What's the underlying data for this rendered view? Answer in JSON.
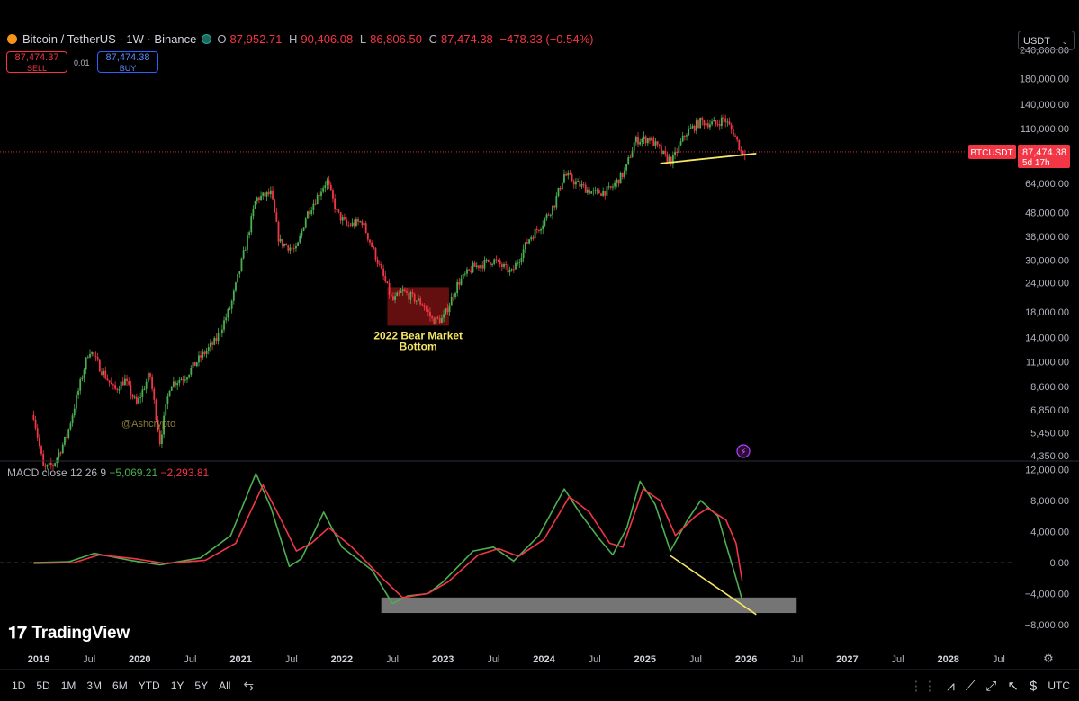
{
  "header": {
    "symbol": "Bitcoin / TetherUS · 1W · Binance",
    "o_label": "O",
    "o_value": "87,952.71",
    "h_label": "H",
    "h_value": "90,406.08",
    "l_label": "L",
    "l_value": "86,806.50",
    "c_label": "C",
    "c_value": "87,474.38",
    "change": "−478.33 (−0.54%)"
  },
  "trade": {
    "sell_price": "87,474.37",
    "sell_label": "SELL",
    "spread": "0.01",
    "buy_price": "87,474.38",
    "buy_label": "BUY"
  },
  "currency_select": "USDT",
  "price_tag": {
    "symbol": "BTCUSDT",
    "price": "87,474.38",
    "countdown": "5d 17h"
  },
  "macd": {
    "label": "MACD close 12 26 9",
    "macd_value": "−5,069.21",
    "signal_value": "−2,293.81"
  },
  "logo_text": "TradingView",
  "watermark": "@Ashcrypto",
  "annotation": {
    "line1": "2022 Bear Market",
    "line2": "Bottom"
  },
  "bottom_bar": {
    "timeframes": [
      "1D",
      "5D",
      "1M",
      "3M",
      "6M",
      "YTD",
      "1Y",
      "5Y",
      "All"
    ],
    "timezone": "UTC"
  },
  "colors": {
    "up": "#4caf50",
    "down": "#f23645",
    "macd_line": "#4caf50",
    "signal_line": "#f23645",
    "trendline": "#f5e663",
    "background": "#000000"
  },
  "chart_data": [
    {
      "type": "candlestick",
      "title": "Bitcoin / TetherUS · 1W · Binance",
      "log_scale": true,
      "y_ticks": [
        4350,
        5450,
        6850,
        8600,
        11000,
        14000,
        18000,
        24000,
        30000,
        38000,
        48000,
        64000,
        110000,
        140000,
        180000,
        240000
      ],
      "y_tick_labels": [
        "4,350.00",
        "5,450.00",
        "6,850.00",
        "8,600.00",
        "11,000.00",
        "14,000.00",
        "18,000.00",
        "24,000.00",
        "30,000.00",
        "38,000.00",
        "48,000.00",
        "64,000.00",
        "110,000.00",
        "140,000.00",
        "180,000.00",
        "240,000.00"
      ],
      "x_tick_labels": [
        "2019",
        "Jul",
        "2020",
        "Jul",
        "2021",
        "Jul",
        "2022",
        "Jul",
        "2023",
        "Jul",
        "2024",
        "Jul",
        "2025",
        "Jul",
        "2026",
        "Jul",
        "2027",
        "Jul",
        "2028",
        "Jul"
      ],
      "x_tick_dates": [
        2019.0,
        2019.5,
        2020.0,
        2020.5,
        2021.0,
        2021.5,
        2022.0,
        2022.5,
        2023.0,
        2023.5,
        2024.0,
        2024.5,
        2025.0,
        2025.5,
        2026.0,
        2026.5,
        2027.0,
        2027.5,
        2028.0,
        2028.5
      ],
      "price_path": [
        {
          "date": 2018.95,
          "price": 6500
        },
        {
          "date": 2019.05,
          "price": 3800
        },
        {
          "date": 2019.15,
          "price": 4000
        },
        {
          "date": 2019.28,
          "price": 5300
        },
        {
          "date": 2019.4,
          "price": 8500
        },
        {
          "date": 2019.5,
          "price": 12500
        },
        {
          "date": 2019.6,
          "price": 10500
        },
        {
          "date": 2019.75,
          "price": 8300
        },
        {
          "date": 2019.85,
          "price": 9200
        },
        {
          "date": 2019.97,
          "price": 7200
        },
        {
          "date": 2020.1,
          "price": 9800
        },
        {
          "date": 2020.2,
          "price": 5000
        },
        {
          "date": 2020.3,
          "price": 8800
        },
        {
          "date": 2020.45,
          "price": 9500
        },
        {
          "date": 2020.6,
          "price": 11500
        },
        {
          "date": 2020.75,
          "price": 13500
        },
        {
          "date": 2020.9,
          "price": 19000
        },
        {
          "date": 2021.05,
          "price": 35000
        },
        {
          "date": 2021.15,
          "price": 55000
        },
        {
          "date": 2021.3,
          "price": 58000
        },
        {
          "date": 2021.38,
          "price": 36000
        },
        {
          "date": 2021.55,
          "price": 33000
        },
        {
          "date": 2021.65,
          "price": 47000
        },
        {
          "date": 2021.85,
          "price": 66000
        },
        {
          "date": 2021.95,
          "price": 48000
        },
        {
          "date": 2022.05,
          "price": 42000
        },
        {
          "date": 2022.2,
          "price": 44000
        },
        {
          "date": 2022.35,
          "price": 30000
        },
        {
          "date": 2022.5,
          "price": 20000
        },
        {
          "date": 2022.6,
          "price": 22000
        },
        {
          "date": 2022.8,
          "price": 19500
        },
        {
          "date": 2022.9,
          "price": 16500
        },
        {
          "date": 2023.0,
          "price": 16800
        },
        {
          "date": 2023.15,
          "price": 24000
        },
        {
          "date": 2023.3,
          "price": 28000
        },
        {
          "date": 2023.5,
          "price": 30000
        },
        {
          "date": 2023.68,
          "price": 26500
        },
        {
          "date": 2023.85,
          "price": 37000
        },
        {
          "date": 2023.98,
          "price": 43000
        },
        {
          "date": 2024.1,
          "price": 52000
        },
        {
          "date": 2024.2,
          "price": 70000
        },
        {
          "date": 2024.35,
          "price": 63000
        },
        {
          "date": 2024.5,
          "price": 58000
        },
        {
          "date": 2024.65,
          "price": 60000
        },
        {
          "date": 2024.8,
          "price": 72000
        },
        {
          "date": 2024.9,
          "price": 98000
        },
        {
          "date": 2025.05,
          "price": 100000
        },
        {
          "date": 2025.2,
          "price": 83000
        },
        {
          "date": 2025.27,
          "price": 80000
        },
        {
          "date": 2025.4,
          "price": 105000
        },
        {
          "date": 2025.55,
          "price": 118000
        },
        {
          "date": 2025.7,
          "price": 115000
        },
        {
          "date": 2025.78,
          "price": 122000
        },
        {
          "date": 2025.88,
          "price": 105000
        },
        {
          "date": 2025.95,
          "price": 88000
        },
        {
          "date": 2026.0,
          "price": 87474
        }
      ],
      "current_price": 87474.38,
      "highlight": {
        "date_from": 2022.45,
        "date_to": 2023.06,
        "price_from": 15700,
        "price_to": 23000,
        "label": "2022 Bear Market Bottom"
      },
      "trendline": {
        "from": {
          "date": 2025.15,
          "price": 78000
        },
        "to": {
          "date": 2026.1,
          "price": 86000
        }
      }
    },
    {
      "type": "line",
      "title": "MACD close 12 26 9",
      "ylim": [
        -8000,
        12000
      ],
      "y_ticks": [
        -8000,
        -4000,
        0,
        4000,
        8000,
        12000
      ],
      "y_tick_labels": [
        "−8,000.00",
        "−4,000.00",
        "0.00",
        "4,000.00",
        "8,000.00",
        "12,000.00"
      ],
      "series": [
        {
          "name": "MACD",
          "points": [
            {
              "date": 2018.95,
              "value": 0
            },
            {
              "date": 2019.3,
              "value": 100
            },
            {
              "date": 2019.55,
              "value": 1200
            },
            {
              "date": 2019.9,
              "value": 300
            },
            {
              "date": 2020.2,
              "value": -300
            },
            {
              "date": 2020.6,
              "value": 600
            },
            {
              "date": 2020.9,
              "value": 3500
            },
            {
              "date": 2021.15,
              "value": 11500
            },
            {
              "date": 2021.3,
              "value": 7000
            },
            {
              "date": 2021.48,
              "value": -500
            },
            {
              "date": 2021.6,
              "value": 500
            },
            {
              "date": 2021.82,
              "value": 6500
            },
            {
              "date": 2022.0,
              "value": 2000
            },
            {
              "date": 2022.3,
              "value": -1000
            },
            {
              "date": 2022.5,
              "value": -5300
            },
            {
              "date": 2022.65,
              "value": -4300
            },
            {
              "date": 2022.85,
              "value": -4000
            },
            {
              "date": 2023.0,
              "value": -2500
            },
            {
              "date": 2023.3,
              "value": 1500
            },
            {
              "date": 2023.5,
              "value": 2000
            },
            {
              "date": 2023.7,
              "value": 200
            },
            {
              "date": 2023.95,
              "value": 3500
            },
            {
              "date": 2024.2,
              "value": 9500
            },
            {
              "date": 2024.35,
              "value": 6500
            },
            {
              "date": 2024.55,
              "value": 3000
            },
            {
              "date": 2024.68,
              "value": 1000
            },
            {
              "date": 2024.82,
              "value": 4500
            },
            {
              "date": 2024.95,
              "value": 10500
            },
            {
              "date": 2025.1,
              "value": 7500
            },
            {
              "date": 2025.25,
              "value": 1500
            },
            {
              "date": 2025.42,
              "value": 5500
            },
            {
              "date": 2025.55,
              "value": 8000
            },
            {
              "date": 2025.72,
              "value": 6000
            },
            {
              "date": 2025.82,
              "value": 1500
            },
            {
              "date": 2025.9,
              "value": -2000
            },
            {
              "date": 2025.96,
              "value": -4800
            }
          ]
        },
        {
          "name": "Signal",
          "points": [
            {
              "date": 2018.95,
              "value": -100
            },
            {
              "date": 2019.35,
              "value": 0
            },
            {
              "date": 2019.6,
              "value": 1000
            },
            {
              "date": 2019.95,
              "value": 500
            },
            {
              "date": 2020.25,
              "value": -100
            },
            {
              "date": 2020.65,
              "value": 300
            },
            {
              "date": 2020.95,
              "value": 2500
            },
            {
              "date": 2021.22,
              "value": 10000
            },
            {
              "date": 2021.4,
              "value": 5500
            },
            {
              "date": 2021.55,
              "value": 1500
            },
            {
              "date": 2021.7,
              "value": 2500
            },
            {
              "date": 2021.87,
              "value": 4500
            },
            {
              "date": 2022.1,
              "value": 2000
            },
            {
              "date": 2022.4,
              "value": -2000
            },
            {
              "date": 2022.6,
              "value": -4500
            },
            {
              "date": 2022.85,
              "value": -4000
            },
            {
              "date": 2023.05,
              "value": -2500
            },
            {
              "date": 2023.35,
              "value": 1000
            },
            {
              "date": 2023.55,
              "value": 1800
            },
            {
              "date": 2023.75,
              "value": 800
            },
            {
              "date": 2024.0,
              "value": 3000
            },
            {
              "date": 2024.25,
              "value": 8500
            },
            {
              "date": 2024.45,
              "value": 6500
            },
            {
              "date": 2024.65,
              "value": 2500
            },
            {
              "date": 2024.78,
              "value": 2000
            },
            {
              "date": 2024.98,
              "value": 9500
            },
            {
              "date": 2025.15,
              "value": 8000
            },
            {
              "date": 2025.3,
              "value": 3500
            },
            {
              "date": 2025.5,
              "value": 6000
            },
            {
              "date": 2025.62,
              "value": 7000
            },
            {
              "date": 2025.8,
              "value": 5500
            },
            {
              "date": 2025.9,
              "value": 2500
            },
            {
              "date": 2025.96,
              "value": -2300
            }
          ]
        }
      ],
      "zero_line": 0,
      "highlight_band": {
        "date_from": 2022.39,
        "date_to": 2026.5,
        "value_from": -6500,
        "value_to": -4500
      },
      "trendline": {
        "from": {
          "date": 2025.25,
          "value": 900
        },
        "to": {
          "date": 2026.1,
          "value": -6700
        }
      }
    }
  ]
}
